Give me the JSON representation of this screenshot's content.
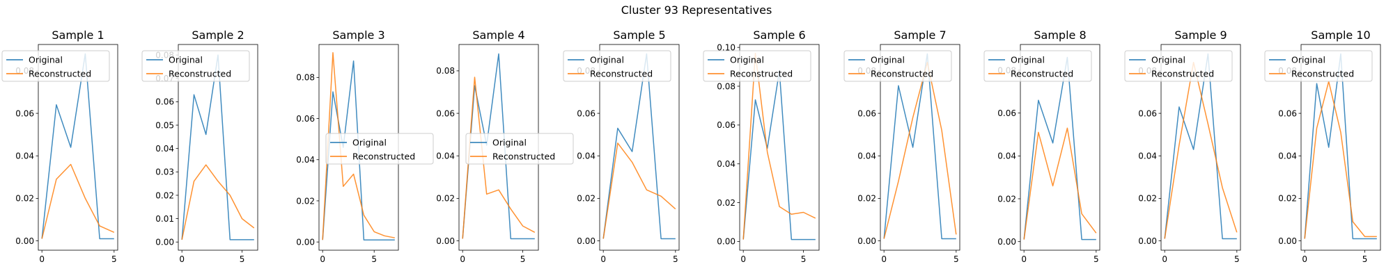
{
  "figure": {
    "suptitle": "Cluster 93 Representatives",
    "colors": {
      "original": "#1f77b4",
      "reconstructed": "#ff7f0e"
    }
  },
  "chart_data": [
    {
      "type": "line",
      "title": "Sample 1",
      "x": [
        0,
        1,
        2,
        3,
        4,
        5
      ],
      "xlim": [
        -0.25,
        5.25
      ],
      "ylim": [
        -0.0044,
        0.0924
      ],
      "xticks": [
        0,
        5
      ],
      "yticks": [
        0.0,
        0.02,
        0.04,
        0.06,
        0.08
      ],
      "yticklabels": [
        "0.00",
        "0.02",
        "0.04",
        "0.06",
        "0.08"
      ],
      "legend": "upper-left",
      "series": [
        {
          "name": "Original",
          "values": [
            0.001,
            0.064,
            0.044,
            0.088,
            0.001,
            0.001
          ]
        },
        {
          "name": "Reconstructed",
          "values": [
            0.001,
            0.029,
            0.036,
            0.02,
            0.007,
            0.004
          ]
        }
      ]
    },
    {
      "type": "line",
      "title": "Sample 2",
      "x": [
        0,
        1,
        2,
        3,
        4,
        5,
        6
      ],
      "xlim": [
        -0.3,
        6.3
      ],
      "ylim": [
        -0.0035,
        0.0845
      ],
      "xticks": [
        0,
        5
      ],
      "yticks": [
        0.0,
        0.01,
        0.02,
        0.03,
        0.04,
        0.05,
        0.06,
        0.07,
        0.08
      ],
      "yticklabels": [
        "0.00",
        "0.01",
        "0.02",
        "0.03",
        "0.04",
        "0.05",
        "0.06",
        "0.07",
        "0.08"
      ],
      "legend": "upper-left",
      "series": [
        {
          "name": "Original",
          "values": [
            0.001,
            0.063,
            0.046,
            0.08,
            0.001,
            0.001,
            0.001
          ]
        },
        {
          "name": "Reconstructed",
          "values": [
            0.001,
            0.026,
            0.033,
            0.026,
            0.02,
            0.01,
            0.006
          ]
        }
      ]
    },
    {
      "type": "line",
      "title": "Sample 3",
      "x": [
        0,
        1,
        2,
        3,
        4,
        5,
        6,
        7
      ],
      "xlim": [
        -0.35,
        7.35
      ],
      "ylim": [
        -0.004,
        0.096
      ],
      "xticks": [
        0,
        5
      ],
      "yticks": [
        0.0,
        0.02,
        0.04,
        0.06,
        0.08
      ],
      "yticklabels": [
        "0.00",
        "0.02",
        "0.04",
        "0.06",
        "0.08"
      ],
      "legend": "center-right",
      "series": [
        {
          "name": "Original",
          "values": [
            0.001,
            0.073,
            0.046,
            0.088,
            0.001,
            0.001,
            0.001,
            0.001
          ]
        },
        {
          "name": "Reconstructed",
          "values": [
            0.001,
            0.092,
            0.027,
            0.033,
            0.013,
            0.005,
            0.003,
            0.002
          ]
        }
      ]
    },
    {
      "type": "line",
      "title": "Sample 4",
      "x": [
        0,
        1,
        2,
        3,
        4,
        5,
        6
      ],
      "xlim": [
        -0.3,
        6.3
      ],
      "ylim": [
        -0.0044,
        0.0924
      ],
      "xticks": [
        0,
        5
      ],
      "yticks": [
        0.0,
        0.02,
        0.04,
        0.06,
        0.08
      ],
      "yticklabels": [
        "0.00",
        "0.02",
        "0.04",
        "0.06",
        "0.08"
      ],
      "legend": "center-right",
      "series": [
        {
          "name": "Original",
          "values": [
            0.001,
            0.073,
            0.045,
            0.088,
            0.001,
            0.001,
            0.001
          ]
        },
        {
          "name": "Reconstructed",
          "values": [
            0.001,
            0.077,
            0.022,
            0.024,
            0.015,
            0.007,
            0.004
          ]
        }
      ]
    },
    {
      "type": "line",
      "title": "Sample 5",
      "x": [
        0,
        1,
        2,
        3,
        4,
        5
      ],
      "xlim": [
        -0.25,
        5.25
      ],
      "ylim": [
        -0.0044,
        0.0924
      ],
      "xticks": [
        0,
        5
      ],
      "yticks": [
        0.0,
        0.02,
        0.04,
        0.06,
        0.08
      ],
      "yticklabels": [
        "0.00",
        "0.02",
        "0.04",
        "0.06",
        "0.08"
      ],
      "legend": "upper-left",
      "series": [
        {
          "name": "Original",
          "values": [
            0.001,
            0.053,
            0.042,
            0.088,
            0.001,
            0.001
          ]
        },
        {
          "name": "Reconstructed",
          "values": [
            0.001,
            0.046,
            0.037,
            0.024,
            0.021,
            0.015
          ]
        }
      ]
    },
    {
      "type": "line",
      "title": "Sample 6",
      "x": [
        0,
        1,
        2,
        3,
        4,
        5,
        6
      ],
      "xlim": [
        -0.3,
        6.3
      ],
      "ylim": [
        -0.0045,
        0.1015
      ],
      "xticks": [
        0,
        5
      ],
      "yticks": [
        0.0,
        0.02,
        0.04,
        0.06,
        0.08,
        0.1
      ],
      "yticklabels": [
        "0.00",
        "0.02",
        "0.04",
        "0.06",
        "0.08",
        "0.10"
      ],
      "legend": "upper-left",
      "series": [
        {
          "name": "Original",
          "values": [
            0.001,
            0.073,
            0.048,
            0.088,
            0.001,
            0.001,
            0.001
          ]
        },
        {
          "name": "Reconstructed",
          "values": [
            0.001,
            0.097,
            0.046,
            0.018,
            0.014,
            0.015,
            0.012
          ]
        }
      ]
    },
    {
      "type": "line",
      "title": "Sample 7",
      "x": [
        0,
        1,
        2,
        3,
        4,
        5
      ],
      "xlim": [
        -0.25,
        5.25
      ],
      "ylim": [
        -0.0044,
        0.0924
      ],
      "xticks": [
        0,
        5
      ],
      "yticks": [
        0.0,
        0.02,
        0.04,
        0.06,
        0.08
      ],
      "yticklabels": [
        "0.00",
        "0.02",
        "0.04",
        "0.06",
        "0.08"
      ],
      "legend": "upper-left",
      "series": [
        {
          "name": "Original",
          "values": [
            0.001,
            0.073,
            0.044,
            0.088,
            0.001,
            0.001
          ]
        },
        {
          "name": "Reconstructed",
          "values": [
            0.001,
            0.028,
            0.058,
            0.084,
            0.052,
            0.003
          ]
        }
      ]
    },
    {
      "type": "line",
      "title": "Sample 8",
      "x": [
        0,
        1,
        2,
        3,
        4,
        5
      ],
      "xlim": [
        -0.25,
        5.25
      ],
      "ylim": [
        -0.004,
        0.092
      ],
      "xticks": [
        0,
        5
      ],
      "yticks": [
        0.0,
        0.02,
        0.04,
        0.06,
        0.08
      ],
      "yticklabels": [
        "0.00",
        "0.02",
        "0.04",
        "0.06",
        "0.08"
      ],
      "legend": "upper-left",
      "series": [
        {
          "name": "Original",
          "values": [
            0.001,
            0.066,
            0.046,
            0.086,
            0.001,
            0.001
          ]
        },
        {
          "name": "Reconstructed",
          "values": [
            0.001,
            0.051,
            0.026,
            0.053,
            0.013,
            0.004
          ]
        }
      ]
    },
    {
      "type": "line",
      "title": "Sample 9",
      "x": [
        0,
        1,
        2,
        3,
        4,
        5
      ],
      "xlim": [
        -0.25,
        5.25
      ],
      "ylim": [
        -0.0044,
        0.0924
      ],
      "xticks": [
        0,
        5
      ],
      "yticks": [
        0.0,
        0.02,
        0.04,
        0.06,
        0.08
      ],
      "yticklabels": [
        "0.00",
        "0.02",
        "0.04",
        "0.06",
        "0.08"
      ],
      "legend": "upper-left",
      "series": [
        {
          "name": "Original",
          "values": [
            0.001,
            0.063,
            0.043,
            0.088,
            0.001,
            0.001
          ]
        },
        {
          "name": "Reconstructed",
          "values": [
            0.001,
            0.045,
            0.084,
            0.055,
            0.025,
            0.004
          ]
        }
      ]
    },
    {
      "type": "line",
      "title": "Sample 10",
      "x": [
        0,
        1,
        2,
        3,
        4,
        5,
        6
      ],
      "xlim": [
        -0.3,
        6.3
      ],
      "ylim": [
        -0.0044,
        0.0924
      ],
      "xticks": [
        0,
        5
      ],
      "yticks": [
        0.0,
        0.02,
        0.04,
        0.06,
        0.08
      ],
      "yticklabels": [
        "0.00",
        "0.02",
        "0.04",
        "0.06",
        "0.08"
      ],
      "legend": "upper-left",
      "series": [
        {
          "name": "Original",
          "values": [
            0.001,
            0.074,
            0.044,
            0.088,
            0.001,
            0.001,
            0.001
          ]
        },
        {
          "name": "Reconstructed",
          "values": [
            0.001,
            0.053,
            0.075,
            0.051,
            0.009,
            0.002,
            0.002
          ]
        }
      ]
    }
  ]
}
